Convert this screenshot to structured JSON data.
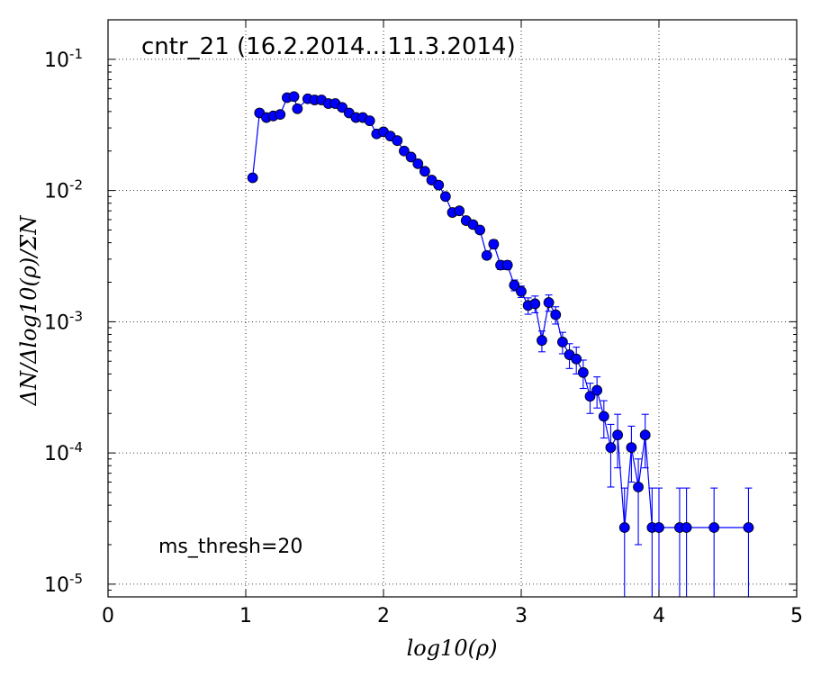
{
  "chart_data": {
    "type": "scatter",
    "title": "cntr_21 (16.2.2014...11.3.2014)",
    "annotation": "ms_thresh=20",
    "xlabel": "log10(ρ)",
    "ylabel": "ΔN/Δlog10(ρ)/ΣN",
    "xlim": [
      0,
      5
    ],
    "ylim": [
      8e-06,
      0.2
    ],
    "yscale": "log",
    "grid": true,
    "x_ticks": [
      {
        "v": 0,
        "label": "0"
      },
      {
        "v": 1,
        "label": "1"
      },
      {
        "v": 2,
        "label": "2"
      },
      {
        "v": 3,
        "label": "3"
      },
      {
        "v": 4,
        "label": "4"
      },
      {
        "v": 5,
        "label": "5"
      }
    ],
    "y_ticks": [
      {
        "v": 0.1,
        "base": "10",
        "exp": "-1"
      },
      {
        "v": 0.01,
        "base": "10",
        "exp": "-2"
      },
      {
        "v": 0.001,
        "base": "10",
        "exp": "-3"
      },
      {
        "v": 0.0001,
        "base": "10",
        "exp": "-4"
      },
      {
        "v": 1e-05,
        "base": "10",
        "exp": "-5"
      }
    ],
    "color": "#0000ff",
    "series": [
      {
        "x": [
          1.05,
          1.1,
          1.15,
          1.2,
          1.25,
          1.3,
          1.35,
          1.375,
          1.45,
          1.5,
          1.55,
          1.6,
          1.65,
          1.7,
          1.75,
          1.8,
          1.85,
          1.9,
          1.95,
          2.0,
          2.05,
          2.1,
          2.15,
          2.2,
          2.25,
          2.3,
          2.35,
          2.4,
          2.45,
          2.5,
          2.55,
          2.6,
          2.65,
          2.7,
          2.75,
          2.8,
          2.85,
          2.9,
          2.95,
          3.0,
          3.05,
          3.1,
          3.15,
          3.2,
          3.25,
          3.3,
          3.35,
          3.4,
          3.45,
          3.5,
          3.55,
          3.6,
          3.65,
          3.7,
          3.75,
          3.8,
          3.85,
          3.9,
          3.95,
          4.0,
          4.15,
          4.2,
          4.4,
          4.65
        ],
        "y": [
          0.0125,
          0.039,
          0.036,
          0.037,
          0.038,
          0.051,
          0.052,
          0.042,
          0.05,
          0.049,
          0.049,
          0.046,
          0.046,
          0.043,
          0.039,
          0.036,
          0.036,
          0.034,
          0.027,
          0.028,
          0.026,
          0.024,
          0.02,
          0.018,
          0.016,
          0.014,
          0.012,
          0.011,
          0.009,
          0.0068,
          0.007,
          0.0059,
          0.0055,
          0.005,
          0.0032,
          0.0039,
          0.0027,
          0.0027,
          0.0019,
          0.0017,
          0.00133,
          0.00137,
          0.00072,
          0.0014,
          0.00113,
          0.0007,
          0.00056,
          0.00052,
          0.00041,
          0.00027,
          0.0003,
          0.00019,
          0.00011,
          0.000137,
          2.7e-05,
          0.00011,
          5.5e-05,
          0.000137,
          2.7e-05,
          2.7e-05,
          2.7e-05,
          2.7e-05,
          2.7e-05,
          2.7e-05
        ],
        "yerr": [
          0.0005,
          0.001,
          0.001,
          0.001,
          0.001,
          0.0012,
          0.0012,
          0.0011,
          0.0012,
          0.0012,
          0.0012,
          0.0011,
          0.0011,
          0.0011,
          0.001,
          0.001,
          0.001,
          0.0009,
          0.0008,
          0.0008,
          0.0008,
          0.0007,
          0.0006,
          0.0006,
          0.0006,
          0.0005,
          0.0005,
          0.0005,
          0.0004,
          0.0003,
          0.0003,
          0.0003,
          0.0003,
          0.0003,
          0.0002,
          0.0003,
          0.0002,
          0.0002,
          0.00018,
          0.00017,
          0.00019,
          0.0002,
          0.00013,
          0.0002,
          0.00017,
          0.00013,
          0.00012,
          0.00012,
          0.0001,
          7e-05,
          8e-05,
          6e-05,
          5.5e-05,
          6e-05,
          2.7e-05,
          5e-05,
          3.5e-05,
          6e-05,
          2.7e-05,
          2.7e-05,
          2.7e-05,
          2.7e-05,
          2.7e-05,
          2.7e-05
        ]
      }
    ]
  }
}
